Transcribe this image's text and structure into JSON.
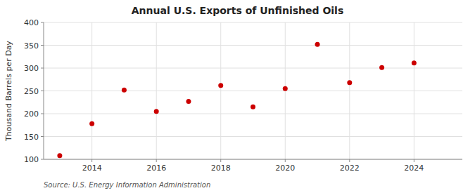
{
  "chart_data": {
    "type": "scatter",
    "title": "Annual U.S. Exports of Unfinished Oils",
    "ylabel": "Thousand Barrels per Day",
    "annotations": [
      "Source: U.S. Energy Information Administration"
    ],
    "x": [
      2013,
      2014,
      2015,
      2016,
      2017,
      2018,
      2019,
      2020,
      2021,
      2022,
      2023,
      2024
    ],
    "values": [
      108,
      178,
      252,
      205,
      227,
      262,
      215,
      255,
      352,
      268,
      301,
      311
    ],
    "color": "#cc0000",
    "xlim": [
      2012.5,
      2025.5
    ],
    "xticks": [
      2014,
      2016,
      2018,
      2020,
      2022,
      2024
    ],
    "ylim": [
      100,
      400
    ],
    "yticks": [
      100,
      150,
      200,
      250,
      300,
      350,
      400
    ],
    "grid": true
  }
}
